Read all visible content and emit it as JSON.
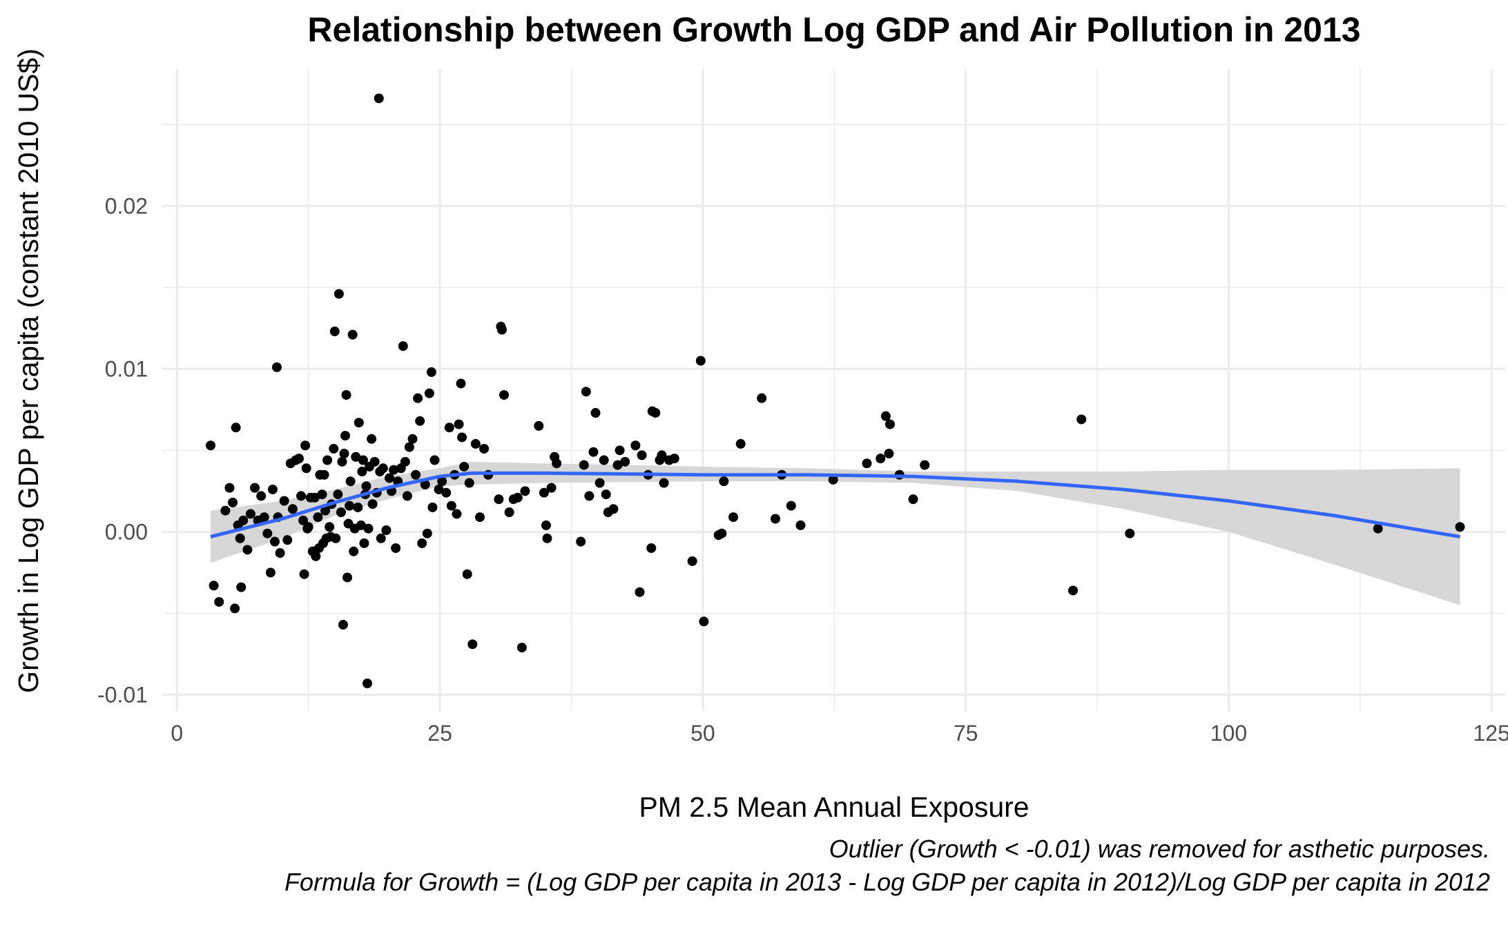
{
  "chart_data": {
    "type": "scatter",
    "title": "Relationship between Growth Log GDP and Air Pollution in 2013",
    "xlabel": "PM 2.5 Mean Annual Exposure",
    "ylabel": "Growth in Log GDP per capita (constant 2010 US$)",
    "caption_lines": [
      "Outlier (Growth < -0.01) was removed for asthetic purposes.",
      "Formula for Growth = (Log GDP per capita in 2013 - Log GDP per capita in 2012)/Log GDP per capita in 2012"
    ],
    "xlim": [
      -1.4,
      126.3
    ],
    "ylim": [
      -0.011,
      0.0284
    ],
    "x_ticks": [
      0,
      25,
      50,
      75,
      100,
      125
    ],
    "x_tick_labels": [
      "0",
      "25",
      "50",
      "75",
      "100",
      "125"
    ],
    "y_ticks": [
      -0.01,
      0.0,
      0.01,
      0.02
    ],
    "y_tick_labels": [
      "-0.01",
      "0.00",
      "0.01",
      "0.02"
    ],
    "grid": true,
    "colors": {
      "points": "#000000",
      "smooth_line": "#3366ff",
      "ribbon": "#d3d3d3",
      "grid": "#ebebeb"
    },
    "points": [
      [
        3.2,
        0.0053
      ],
      [
        3.5,
        -0.0033
      ],
      [
        4.0,
        -0.0043
      ],
      [
        4.6,
        0.0013
      ],
      [
        5.0,
        0.0027
      ],
      [
        5.3,
        0.0018
      ],
      [
        5.5,
        -0.0047
      ],
      [
        5.6,
        0.0064
      ],
      [
        5.8,
        0.0004
      ],
      [
        6.0,
        -0.0004
      ],
      [
        6.1,
        -0.0034
      ],
      [
        6.3,
        0.0007
      ],
      [
        6.7,
        -0.0011
      ],
      [
        7.0,
        0.0011
      ],
      [
        7.4,
        0.0027
      ],
      [
        7.7,
        0.0007
      ],
      [
        8.0,
        0.0022
      ],
      [
        8.3,
        0.0009
      ],
      [
        8.6,
        -0.0001
      ],
      [
        8.9,
        -0.0025
      ],
      [
        9.1,
        0.0026
      ],
      [
        9.3,
        -0.0006
      ],
      [
        9.5,
        0.0101
      ],
      [
        9.6,
        0.0009
      ],
      [
        9.8,
        -0.0013
      ],
      [
        10.2,
        0.0019
      ],
      [
        10.5,
        -0.0005
      ],
      [
        10.8,
        0.0042
      ],
      [
        11.0,
        0.0014
      ],
      [
        11.3,
        0.0044
      ],
      [
        11.6,
        0.0045
      ],
      [
        11.8,
        0.0022
      ],
      [
        12.0,
        0.0007
      ],
      [
        12.1,
        -0.0026
      ],
      [
        12.2,
        0.0053
      ],
      [
        12.3,
        0.0039
      ],
      [
        12.4,
        0.0002
      ],
      [
        12.5,
        0.0003
      ],
      [
        12.7,
        0.0021
      ],
      [
        12.9,
        -0.0012
      ],
      [
        13.1,
        0.0021
      ],
      [
        13.2,
        -0.0015
      ],
      [
        13.4,
        0.0009
      ],
      [
        13.5,
        -0.001
      ],
      [
        13.6,
        0.0035
      ],
      [
        13.8,
        0.0023
      ],
      [
        13.9,
        -0.0007
      ],
      [
        14.0,
        0.0035
      ],
      [
        14.1,
        0.0013
      ],
      [
        14.2,
        -0.0004
      ],
      [
        14.3,
        0.0044
      ],
      [
        14.5,
        0.0003
      ],
      [
        14.6,
        -0.0003
      ],
      [
        14.7,
        0.0017
      ],
      [
        14.9,
        0.0051
      ],
      [
        15.0,
        0.0123
      ],
      [
        15.1,
        -0.0004
      ],
      [
        15.3,
        0.0023
      ],
      [
        15.4,
        0.0146
      ],
      [
        15.6,
        0.0012
      ],
      [
        15.7,
        0.0043
      ],
      [
        15.8,
        -0.0057
      ],
      [
        15.9,
        0.0048
      ],
      [
        16.0,
        0.0059
      ],
      [
        16.1,
        0.0084
      ],
      [
        16.2,
        -0.0028
      ],
      [
        16.3,
        0.0005
      ],
      [
        16.4,
        0.0016
      ],
      [
        16.5,
        0.0031
      ],
      [
        16.7,
        0.0121
      ],
      [
        16.8,
        -0.0012
      ],
      [
        16.9,
        0.0002
      ],
      [
        17.0,
        0.0046
      ],
      [
        17.2,
        0.0015
      ],
      [
        17.3,
        0.0067
      ],
      [
        17.5,
        0.0004
      ],
      [
        17.6,
        0.0037
      ],
      [
        17.7,
        0.0044
      ],
      [
        17.8,
        -0.0007
      ],
      [
        17.9,
        0.0023
      ],
      [
        18.0,
        0.0028
      ],
      [
        18.1,
        -0.0093
      ],
      [
        18.2,
        0.0002
      ],
      [
        18.3,
        0.004
      ],
      [
        18.5,
        0.0057
      ],
      [
        18.6,
        0.0017
      ],
      [
        18.8,
        0.0043
      ],
      [
        19.0,
        0.0024
      ],
      [
        19.2,
        0.0266
      ],
      [
        19.3,
        0.0037
      ],
      [
        19.4,
        -0.0004
      ],
      [
        19.6,
        0.0039
      ],
      [
        19.9,
        0.0001
      ],
      [
        20.2,
        0.0033
      ],
      [
        20.4,
        0.0025
      ],
      [
        20.6,
        0.0038
      ],
      [
        20.8,
        -0.001
      ],
      [
        21.0,
        0.0031
      ],
      [
        21.3,
        0.0039
      ],
      [
        21.5,
        0.0114
      ],
      [
        21.7,
        0.0043
      ],
      [
        21.9,
        0.0022
      ],
      [
        22.1,
        0.0052
      ],
      [
        22.4,
        0.0057
      ],
      [
        22.7,
        0.0035
      ],
      [
        22.9,
        0.0082
      ],
      [
        23.1,
        0.0068
      ],
      [
        23.3,
        -0.0007
      ],
      [
        23.6,
        0.0029
      ],
      [
        23.8,
        -0.0001
      ],
      [
        24.0,
        0.0085
      ],
      [
        24.2,
        0.0098
      ],
      [
        24.3,
        0.0015
      ],
      [
        24.5,
        0.0044
      ],
      [
        24.9,
        0.0026
      ],
      [
        25.2,
        0.0031
      ],
      [
        25.6,
        0.0024
      ],
      [
        25.9,
        0.0064
      ],
      [
        26.1,
        0.0016
      ],
      [
        26.4,
        0.0035
      ],
      [
        26.6,
        0.0011
      ],
      [
        26.8,
        0.0066
      ],
      [
        27.0,
        0.0091
      ],
      [
        27.1,
        0.0058
      ],
      [
        27.3,
        0.004
      ],
      [
        27.6,
        -0.0026
      ],
      [
        27.8,
        0.003
      ],
      [
        28.1,
        -0.0069
      ],
      [
        28.4,
        0.0054
      ],
      [
        28.8,
        0.0009
      ],
      [
        29.2,
        0.0051
      ],
      [
        29.6,
        0.0035
      ],
      [
        30.6,
        0.002
      ],
      [
        30.8,
        0.0126
      ],
      [
        30.9,
        0.0124
      ],
      [
        31.1,
        0.0084
      ],
      [
        31.6,
        0.0012
      ],
      [
        32.0,
        0.002
      ],
      [
        32.4,
        0.0021
      ],
      [
        32.8,
        -0.0071
      ],
      [
        33.1,
        0.0025
      ],
      [
        34.4,
        0.0065
      ],
      [
        34.9,
        0.0024
      ],
      [
        35.1,
        0.0004
      ],
      [
        35.2,
        -0.0004
      ],
      [
        35.6,
        0.0027
      ],
      [
        35.9,
        0.0046
      ],
      [
        36.1,
        0.0042
      ],
      [
        38.4,
        -0.0006
      ],
      [
        38.7,
        0.0041
      ],
      [
        38.9,
        0.0086
      ],
      [
        39.2,
        0.0022
      ],
      [
        39.6,
        0.0049
      ],
      [
        39.8,
        0.0073
      ],
      [
        40.2,
        0.003
      ],
      [
        40.6,
        0.0044
      ],
      [
        40.8,
        0.0023
      ],
      [
        41.0,
        0.0012
      ],
      [
        41.5,
        0.0014
      ],
      [
        41.9,
        0.0041
      ],
      [
        42.1,
        0.005
      ],
      [
        42.6,
        0.0043
      ],
      [
        43.6,
        0.0053
      ],
      [
        44.0,
        -0.0037
      ],
      [
        44.2,
        0.0047
      ],
      [
        44.8,
        0.0035
      ],
      [
        45.1,
        -0.001
      ],
      [
        45.2,
        0.0074
      ],
      [
        45.5,
        0.0073
      ],
      [
        45.9,
        0.0044
      ],
      [
        46.1,
        0.0047
      ],
      [
        46.3,
        0.003
      ],
      [
        46.8,
        0.0044
      ],
      [
        47.3,
        0.0045
      ],
      [
        49.0,
        -0.0018
      ],
      [
        49.8,
        0.0105
      ],
      [
        50.1,
        -0.0055
      ],
      [
        51.5,
        -0.0002
      ],
      [
        51.8,
        -0.0001
      ],
      [
        52.0,
        0.0031
      ],
      [
        52.9,
        0.0009
      ],
      [
        53.6,
        0.0054
      ],
      [
        55.6,
        0.0082
      ],
      [
        56.9,
        0.0008
      ],
      [
        57.5,
        0.0035
      ],
      [
        58.4,
        0.0016
      ],
      [
        59.3,
        0.0004
      ],
      [
        62.4,
        0.0032
      ],
      [
        65.6,
        0.0042
      ],
      [
        66.9,
        0.0045
      ],
      [
        67.4,
        0.0071
      ],
      [
        67.7,
        0.0048
      ],
      [
        67.8,
        0.0066
      ],
      [
        68.7,
        0.0035
      ],
      [
        70.0,
        0.002
      ],
      [
        71.1,
        0.0041
      ],
      [
        85.2,
        -0.0036
      ],
      [
        86.0,
        0.0069
      ],
      [
        90.6,
        -0.0001
      ],
      [
        114.2,
        0.0002
      ],
      [
        122.0,
        0.0003
      ]
    ],
    "smooth_line": [
      [
        3.2,
        -0.0003
      ],
      [
        10,
        0.0008
      ],
      [
        15,
        0.0018
      ],
      [
        20,
        0.0027
      ],
      [
        25,
        0.0034
      ],
      [
        28,
        0.0036
      ],
      [
        35,
        0.0036
      ],
      [
        50,
        0.0035
      ],
      [
        60,
        0.0035
      ],
      [
        70,
        0.0034
      ],
      [
        80,
        0.0031
      ],
      [
        90,
        0.0026
      ],
      [
        100,
        0.0019
      ],
      [
        110,
        0.001
      ],
      [
        122,
        -0.0003
      ]
    ],
    "ribbon_upper": [
      [
        3.2,
        0.0013
      ],
      [
        10,
        0.0019
      ],
      [
        15,
        0.0026
      ],
      [
        20,
        0.0034
      ],
      [
        25,
        0.0039
      ],
      [
        28,
        0.0043
      ],
      [
        35,
        0.0042
      ],
      [
        50,
        0.004
      ],
      [
        60,
        0.0039
      ],
      [
        70,
        0.0037
      ],
      [
        80,
        0.0037
      ],
      [
        90,
        0.0037
      ],
      [
        100,
        0.0038
      ],
      [
        110,
        0.0038
      ],
      [
        122,
        0.0039
      ]
    ],
    "ribbon_lower": [
      [
        3.2,
        -0.0019
      ],
      [
        10,
        -0.0004
      ],
      [
        15,
        0.001
      ],
      [
        20,
        0.002
      ],
      [
        25,
        0.0028
      ],
      [
        28,
        0.0029
      ],
      [
        35,
        0.003
      ],
      [
        50,
        0.0031
      ],
      [
        60,
        0.0031
      ],
      [
        70,
        0.003
      ],
      [
        80,
        0.0025
      ],
      [
        90,
        0.0014
      ],
      [
        100,
        0.0
      ],
      [
        110,
        -0.002
      ],
      [
        122,
        -0.0045
      ]
    ]
  }
}
